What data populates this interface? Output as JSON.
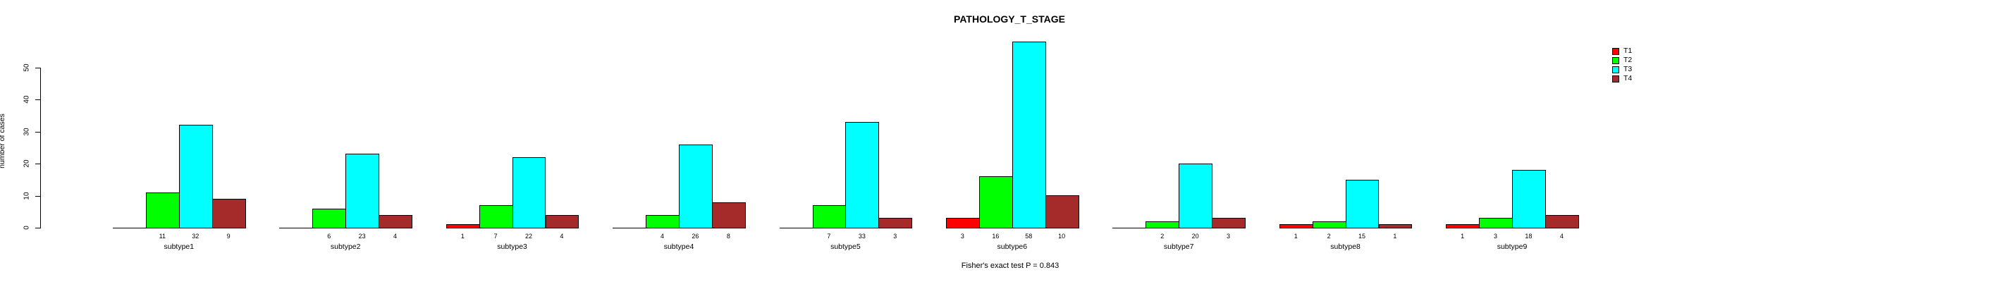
{
  "chart_data": {
    "type": "bar",
    "title": "PATHOLOGY_T_STAGE",
    "subtitle": "Fisher's exact test P = 0.843",
    "ylabel": "number of cases",
    "ylim": [
      0,
      50
    ],
    "yticks": [
      0,
      10,
      20,
      30,
      40,
      50
    ],
    "grid": false,
    "legend_position": "top-right",
    "categories": [
      "subtype1",
      "subtype2",
      "subtype3",
      "subtype4",
      "subtype5",
      "subtype6",
      "subtype7",
      "subtype8",
      "subtype9"
    ],
    "series": [
      {
        "name": "T1",
        "color": "#FF0000",
        "values": [
          0,
          0,
          1,
          0,
          0,
          3,
          0,
          1,
          1
        ]
      },
      {
        "name": "T2",
        "color": "#00FF00",
        "values": [
          11,
          6,
          7,
          4,
          7,
          16,
          2,
          2,
          3
        ]
      },
      {
        "name": "T3",
        "color": "#00FFFF",
        "values": [
          32,
          23,
          22,
          26,
          33,
          58,
          20,
          15,
          18
        ]
      },
      {
        "name": "T4",
        "color": "#A52A2A",
        "values": [
          9,
          4,
          4,
          8,
          3,
          10,
          3,
          1,
          4
        ]
      }
    ]
  }
}
